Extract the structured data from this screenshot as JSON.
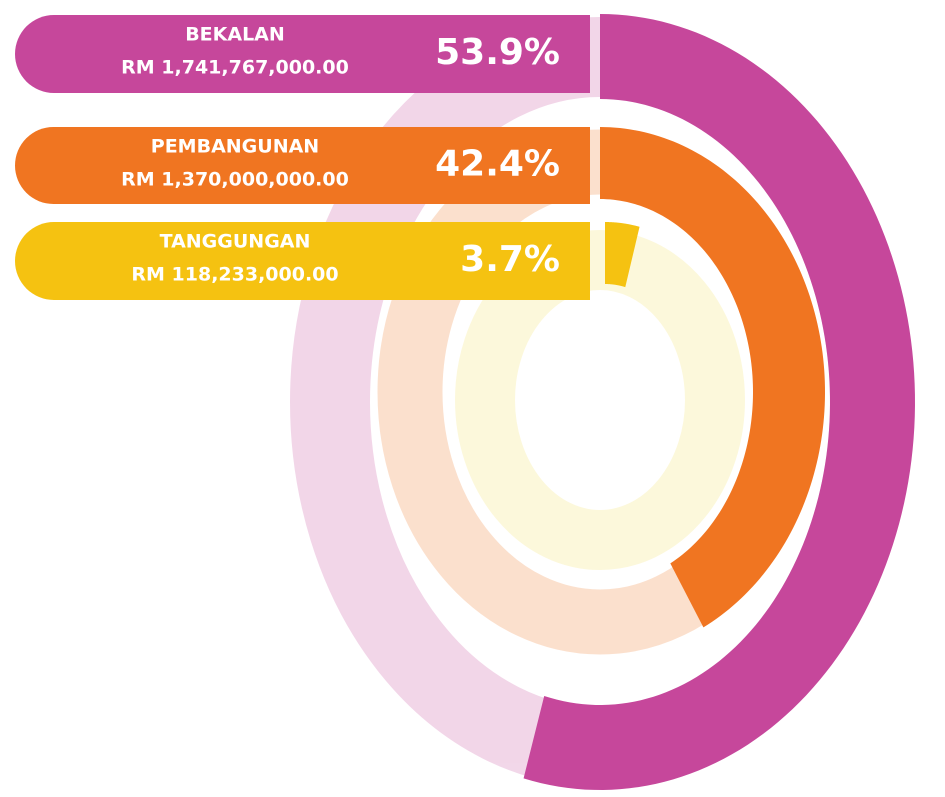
{
  "chart_data": {
    "type": "radial_bar",
    "categories": [
      "BEKALAN",
      "PEMBANGUNAN",
      "TANGGUNGAN"
    ],
    "amounts": [
      "RM 1,741,767,000.00",
      "RM 1,370,000,000.00",
      "RM 118,233,000.00"
    ],
    "values": [
      53.9,
      42.4,
      3.7
    ],
    "value_labels": [
      "53.9%",
      "42.4%",
      "3.7%"
    ],
    "colors": [
      "#c6479b",
      "#f07521",
      "#f5c211"
    ]
  }
}
